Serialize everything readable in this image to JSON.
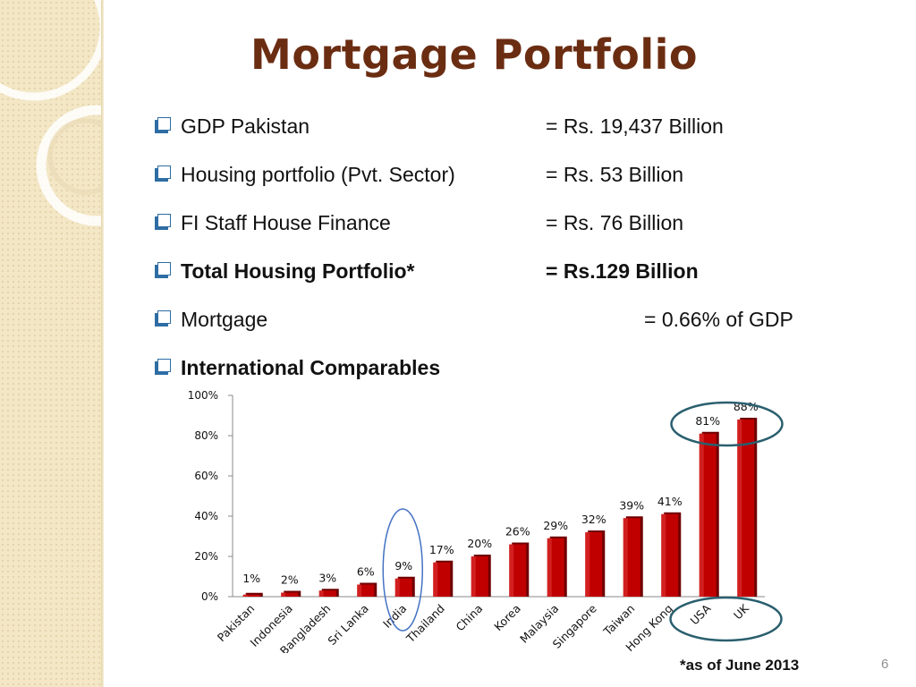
{
  "slide": {
    "title": "Mortgage Portfolio",
    "footnote": "*as of June 2013",
    "page_number": "6"
  },
  "bullets": [
    {
      "label": "GDP Pakistan",
      "value": "= Rs. 19,437 Billion"
    },
    {
      "label": "Housing portfolio (Pvt. Sector)",
      "value": "= Rs. 53 Billion"
    },
    {
      "label": "FI Staff House Finance",
      "value": "= Rs. 76 Billion"
    },
    {
      "label": "Total Housing Portfolio*",
      "value": "= Rs.129 Billion"
    },
    {
      "label": "Mortgage",
      "value": "= 0.66% of GDP"
    },
    {
      "label": "International Comparables",
      "value": ""
    }
  ],
  "colors": {
    "bar": "#c00000",
    "title": "#6b2d12",
    "highlight_blue": "#4472c4",
    "highlight_teal": "#2a5f6e"
  },
  "chart_data": {
    "type": "bar",
    "categories": [
      "Pakistan",
      "Indonesia",
      "Bangladesh",
      "Sri Lanka",
      "India",
      "Thailand",
      "China",
      "Korea",
      "Malaysia",
      "Singapore",
      "Taiwan",
      "Hong Kong",
      "USA",
      "UK"
    ],
    "values": [
      1,
      2,
      3,
      6,
      9,
      17,
      20,
      26,
      29,
      32,
      39,
      41,
      81,
      88
    ],
    "data_labels": [
      "1%",
      "2%",
      "3%",
      "6%",
      "9%",
      "17%",
      "20%",
      "26%",
      "29%",
      "32%",
      "39%",
      "41%",
      "81%",
      "88%"
    ],
    "yticks": [
      "0%",
      "20%",
      "40%",
      "60%",
      "80%",
      "100%"
    ],
    "ylim": [
      0,
      100
    ],
    "title": "",
    "xlabel": "",
    "ylabel": "",
    "grid": false,
    "legend": "none",
    "highlighted": {
      "India": "blue-ellipse",
      "USA": "teal-ellipse",
      "UK": "teal-ellipse"
    }
  }
}
